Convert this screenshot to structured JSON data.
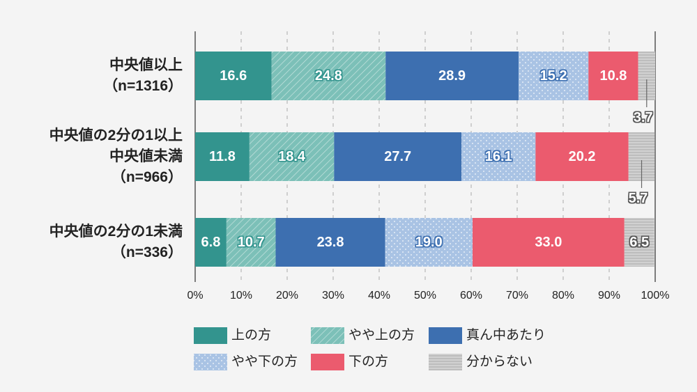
{
  "chart_data": {
    "type": "bar",
    "orientation": "horizontal",
    "stacked": true,
    "categories": [
      [
        "中央値以上",
        "（n=1316）"
      ],
      [
        "中央値の2分の1以上",
        "中央値未満",
        "（n=966）"
      ],
      [
        "中央値の2分の1未満",
        "（n=336）"
      ]
    ],
    "series": [
      {
        "name": "上の方",
        "values": [
          16.6,
          11.8,
          6.8
        ],
        "color": "#33948e",
        "pattern": "solid"
      },
      {
        "name": "やや上の方",
        "values": [
          24.8,
          18.4,
          10.7
        ],
        "color": "#7cc0b8",
        "pattern": "diagonal-stripes"
      },
      {
        "name": "真ん中あたり",
        "values": [
          28.9,
          27.7,
          23.8
        ],
        "color": "#3d6fb0",
        "pattern": "solid"
      },
      {
        "name": "やや下の方",
        "values": [
          15.2,
          16.1,
          19.0
        ],
        "color": "#a9c3e4",
        "pattern": "dots"
      },
      {
        "name": "下の方",
        "values": [
          10.8,
          20.2,
          33.0
        ],
        "color": "#eb5b6e",
        "pattern": "solid"
      },
      {
        "name": "分からない",
        "values": [
          3.7,
          5.7,
          6.5
        ],
        "color": "#bdbdbd",
        "pattern": "horizontal-stripes"
      }
    ],
    "value_labels": [
      [
        "16.6",
        "24.8",
        "28.9",
        "15.2",
        "10.8",
        "3.7"
      ],
      [
        "11.8",
        "18.4",
        "27.7",
        "16.1",
        "20.2",
        "5.7"
      ],
      [
        "6.8",
        "10.7",
        "23.8",
        "19.0",
        "33.0",
        "6.5"
      ]
    ],
    "xlim": [
      0,
      100
    ],
    "xticks": [
      "0%",
      "10%",
      "20%",
      "30%",
      "40%",
      "50%",
      "60%",
      "70%",
      "80%",
      "90%",
      "100%"
    ],
    "grid": "vertical-dashed",
    "legend_placement": "bottom"
  }
}
